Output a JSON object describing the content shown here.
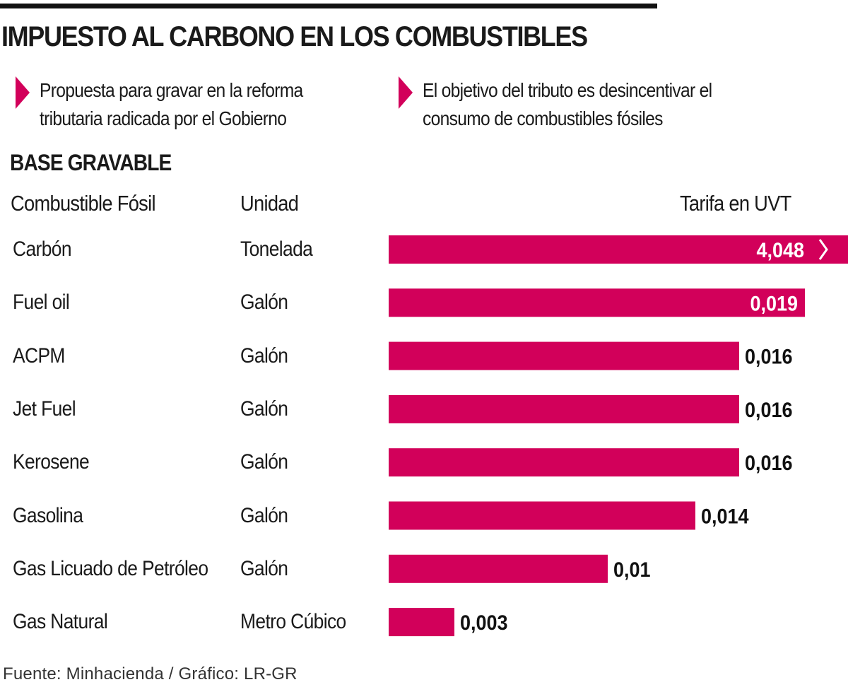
{
  "title": "IMPUESTO AL CARBONO EN LOS COMBUSTIBLES",
  "notes": [
    {
      "line1": "Propuesta para gravar en la reforma",
      "line2": "tributaria radicada por el Gobierno"
    },
    {
      "line1": "El objetivo del tributo es desincentivar el",
      "line2": "consumo de combustibles fósiles"
    }
  ],
  "section_title": "BASE GRAVABLE",
  "headers": {
    "fuel": "Combustible Fósil",
    "unit": "Unidad",
    "rate": "Tarifa en UVT"
  },
  "accent_color": "#d2005a",
  "source": "Fuente: Minhacienda / Gráfico: LR-GR",
  "chart_data": {
    "type": "bar",
    "orientation": "horizontal",
    "categories": [
      "Carbón",
      "Fuel oil",
      "ACPM",
      "Jet Fuel",
      "Kerosene",
      "Gasolina",
      "Gas Licuado de Petróleo",
      "Gas Natural"
    ],
    "units": [
      "Tonelada",
      "Galón",
      "Galón",
      "Galón",
      "Galón",
      "Galón",
      "Galón",
      "Metro Cúbico"
    ],
    "values": [
      4.048,
      0.019,
      0.016,
      0.016,
      0.016,
      0.014,
      0.01,
      0.003
    ],
    "labels": [
      "4,048",
      "0,019",
      "0,016",
      "0,016",
      "0,016",
      "0,014",
      "0,01",
      "0,003"
    ],
    "truncated": [
      true,
      false,
      false,
      false,
      false,
      false,
      false,
      false
    ],
    "xlabel": "Tarifa en UVT",
    "color": "#d2005a"
  }
}
